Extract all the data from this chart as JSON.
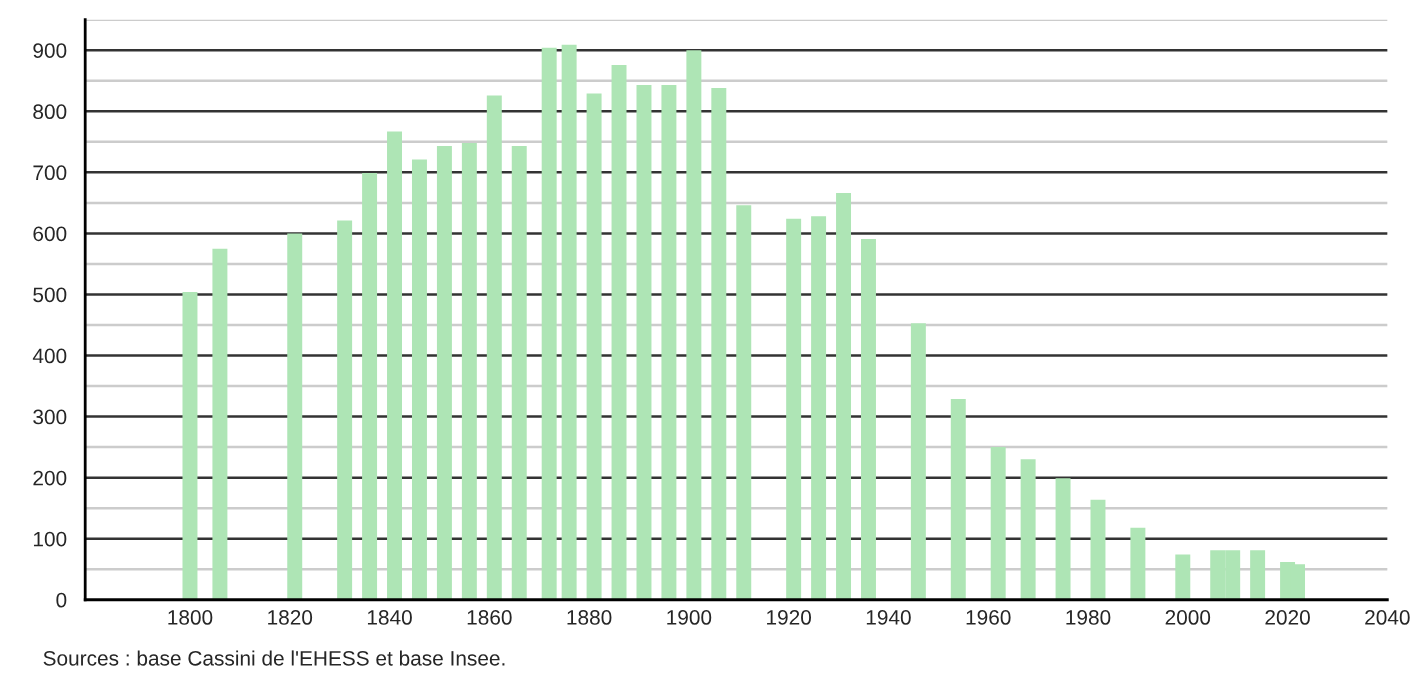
{
  "chart_data": {
    "type": "bar",
    "x": [
      1800,
      1806,
      1821,
      1831,
      1836,
      1841,
      1846,
      1851,
      1856,
      1861,
      1866,
      1872,
      1876,
      1881,
      1886,
      1891,
      1896,
      1901,
      1906,
      1911,
      1921,
      1926,
      1931,
      1936,
      1946,
      1954,
      1962,
      1968,
      1975,
      1982,
      1990,
      1999,
      2006,
      2009,
      2014,
      2020,
      2022
    ],
    "values": [
      504,
      575,
      600,
      621,
      699,
      767,
      721,
      743,
      748,
      826,
      743,
      904,
      909,
      829,
      876,
      843,
      843,
      900,
      838,
      646,
      624,
      628,
      666,
      591,
      453,
      329,
      250,
      230,
      199,
      164,
      118,
      74,
      81,
      81,
      81,
      62,
      58
    ],
    "color": "#aee5b5",
    "xlim": [
      1779,
      2040
    ],
    "xticks": [
      1800,
      1820,
      1840,
      1860,
      1880,
      1900,
      1920,
      1940,
      1960,
      1980,
      2000,
      2020,
      2040
    ],
    "ylim": [
      0,
      950
    ],
    "yticks": [
      0,
      {
        "value": 50,
        "label": null
      },
      100,
      {
        "value": 150,
        "label": null
      },
      200,
      {
        "value": 250,
        "label": null
      },
      300,
      {
        "value": 350,
        "label": null
      },
      400,
      {
        "value": 450,
        "label": null
      },
      500,
      {
        "value": 550,
        "label": null
      },
      600,
      {
        "value": 650,
        "label": null
      },
      700,
      {
        "value": 750,
        "label": null
      },
      800,
      {
        "value": 850,
        "label": null
      },
      900,
      {
        "value": 950,
        "label": null
      }
    ],
    "grid": "y",
    "annotations": [
      "Sources : base Cassini de l'EHESS et base Insee."
    ]
  }
}
